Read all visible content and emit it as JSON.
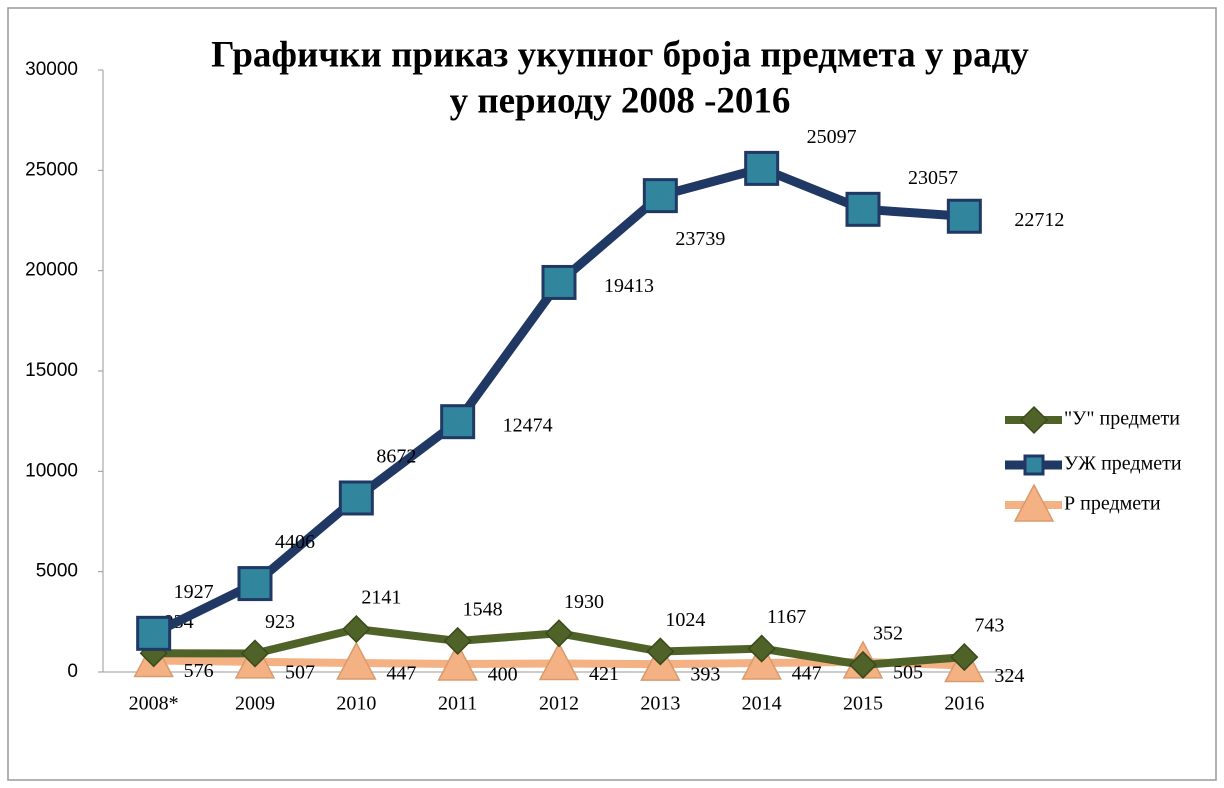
{
  "chart_data": {
    "type": "line",
    "title": [
      "Графички приказ укупног броја предмета у раду",
      "у периоду 2008 -2016"
    ],
    "categories": [
      "2008*",
      "2009",
      "2010",
      "2011",
      "2012",
      "2013",
      "2014",
      "2015",
      "2016"
    ],
    "series": [
      {
        "name": "\"У\" предмети",
        "color": "#4f6228",
        "marker": "diamond",
        "values": [
          934,
          923,
          2141,
          1548,
          1930,
          1024,
          1167,
          352,
          743
        ]
      },
      {
        "name": "УЖ предмети",
        "color": "#1f3864",
        "marker": "square",
        "values": [
          1927,
          4406,
          8672,
          12474,
          19413,
          23739,
          25097,
          23057,
          22712
        ]
      },
      {
        "name": "Р предмети",
        "color": "#f4b183",
        "marker": "triangle",
        "values": [
          576,
          507,
          447,
          400,
          421,
          393,
          447,
          505,
          324
        ]
      }
    ],
    "ylim": [
      0,
      30000
    ],
    "yticks": [
      0,
      5000,
      10000,
      15000,
      20000,
      25000,
      30000
    ],
    "legend": "right"
  }
}
